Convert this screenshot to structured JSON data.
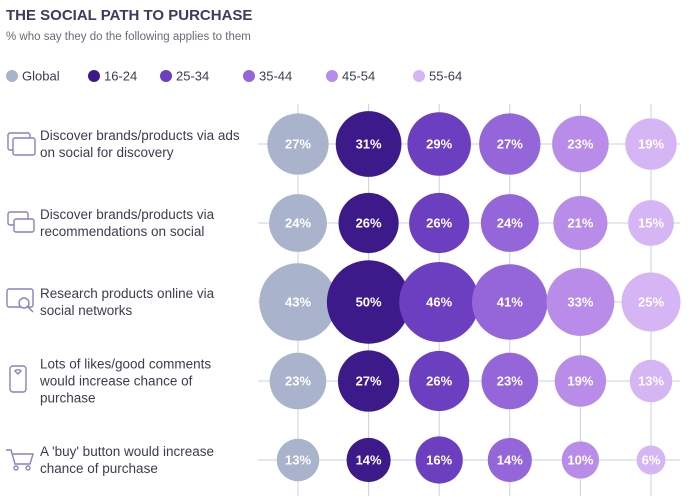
{
  "chart_data": {
    "type": "bubble-grid",
    "title": "THE SOCIAL PATH TO PURCHASE",
    "subtitle": "% who say they do the following applies to them",
    "categories": [
      "Discover brands/products via ads on social for discovery",
      "Discover brands/products via recommendations on social",
      "Research products online via social networks",
      "Lots of likes/good comments would increase chance of purchase",
      "A 'buy' button would increase chance of purchase"
    ],
    "series": [
      {
        "name": "Global",
        "color": "#a9b3cb",
        "values": [
          27,
          24,
          43,
          23,
          13
        ],
        "value_labels": [
          "27%",
          "24%",
          "43%",
          "23%",
          "13%"
        ]
      },
      {
        "name": "16-24",
        "color": "#3d1a8a",
        "values": [
          31,
          26,
          50,
          27,
          14
        ],
        "value_labels": [
          "31%",
          "26%",
          "50%",
          "27%",
          "14%"
        ]
      },
      {
        "name": "25-34",
        "color": "#6b3fc0",
        "values": [
          29,
          26,
          46,
          26,
          16
        ],
        "value_labels": [
          "29%",
          "26%",
          "46%",
          "26%",
          "16%"
        ]
      },
      {
        "name": "35-44",
        "color": "#9566da",
        "values": [
          27,
          24,
          41,
          23,
          14
        ],
        "value_labels": [
          "27%",
          "24%",
          "41%",
          "23%",
          "14%"
        ]
      },
      {
        "name": "45-54",
        "color": "#b98ce9",
        "values": [
          23,
          21,
          33,
          19,
          10
        ],
        "value_labels": [
          "23%",
          "21%",
          "33%",
          "19%",
          "10%"
        ]
      },
      {
        "name": "55-64",
        "color": "#d5b5f3",
        "values": [
          19,
          15,
          25,
          13,
          6
        ],
        "value_labels": [
          "19%",
          "15%",
          "25%",
          "13%",
          "6%"
        ]
      }
    ]
  }
}
